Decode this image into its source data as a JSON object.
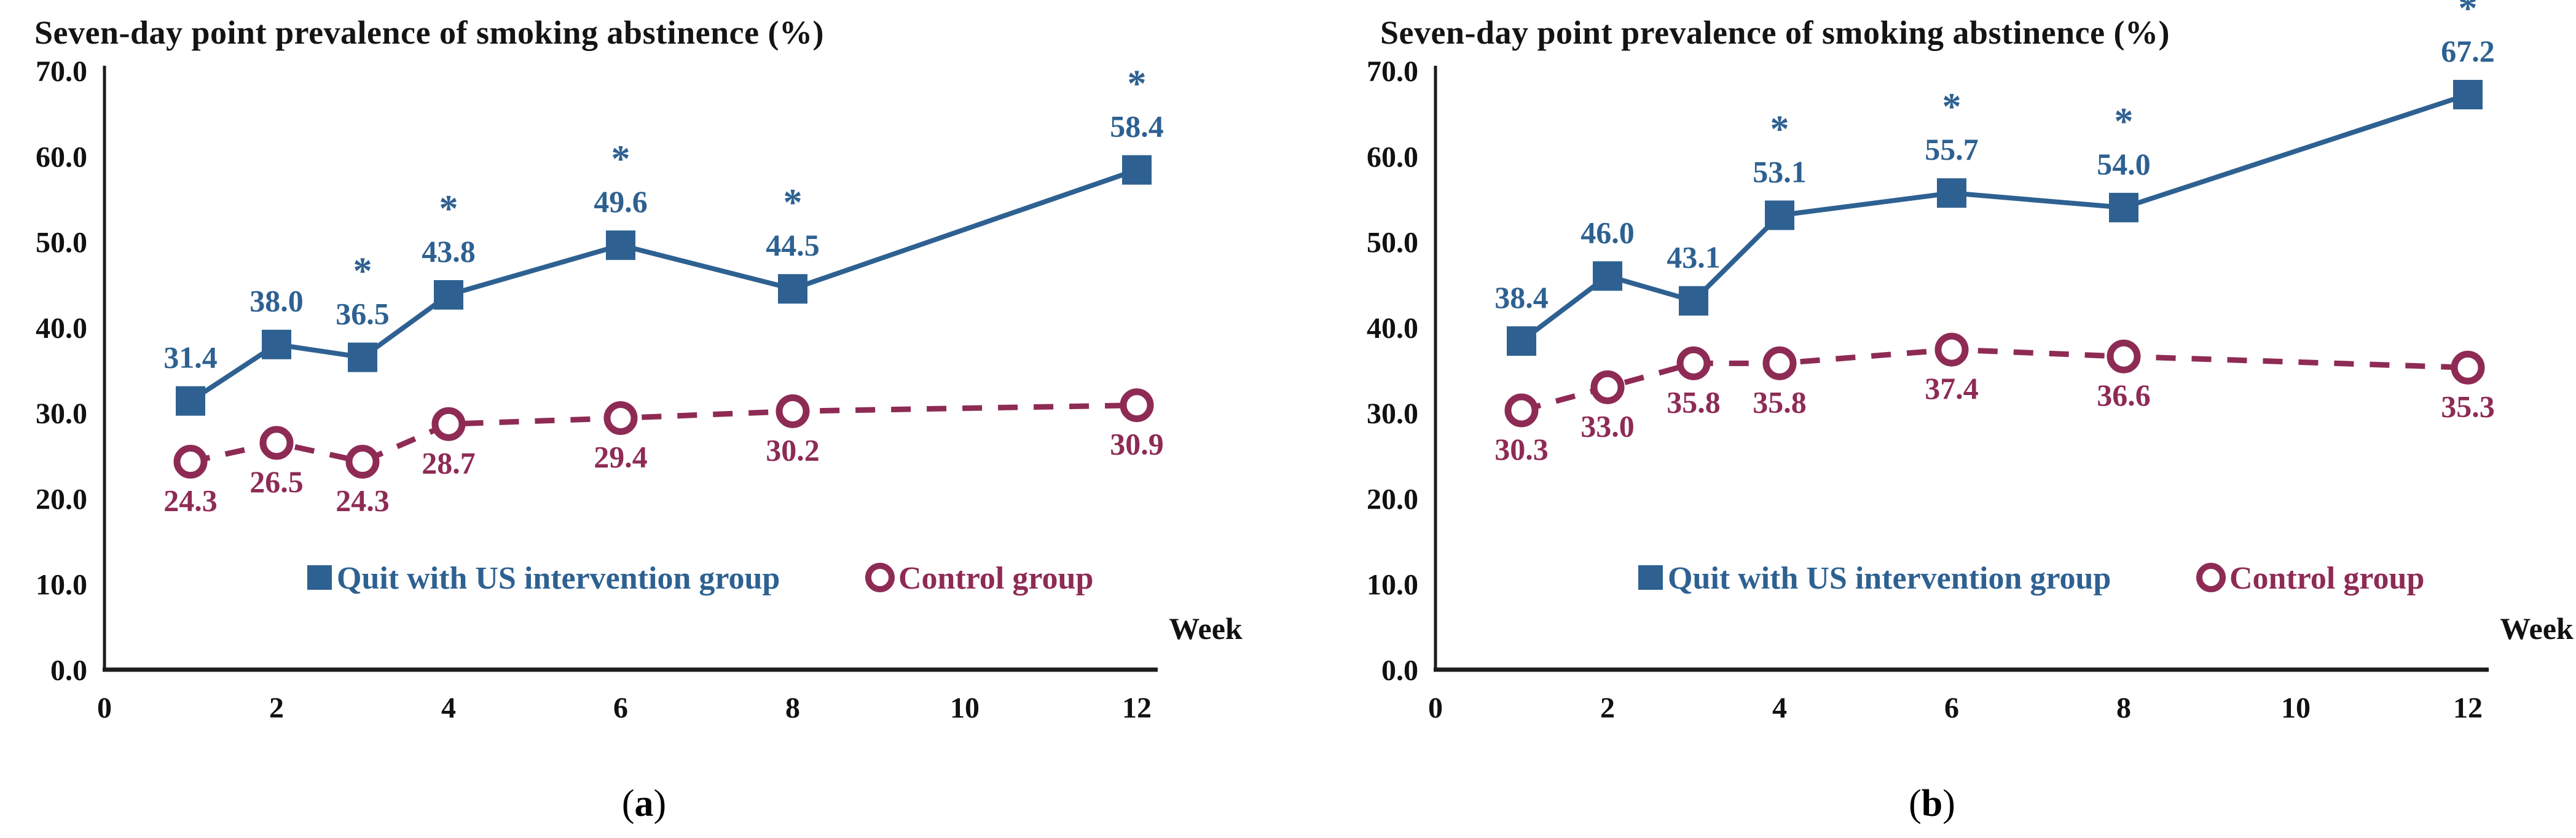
{
  "chart_data": [
    {
      "type": "line",
      "panel": "a",
      "title": "Seven-day point prevalence of smoking abstinence (%)",
      "xlabel": "Week",
      "ylabel": "",
      "caption": {
        "open": "(",
        "letter": "a",
        "close": ")"
      },
      "x": [
        1,
        2,
        3,
        4,
        6,
        8,
        12
      ],
      "x_ticks": [
        0,
        2,
        4,
        6,
        8,
        10,
        12
      ],
      "y_ticks": [
        "0.0",
        "10.0",
        "20.0",
        "30.0",
        "40.0",
        "50.0",
        "60.0",
        "70.0"
      ],
      "ylim": [
        0,
        70
      ],
      "xlim": [
        0,
        12.25
      ],
      "grid": false,
      "legend_position": "inside-bottom",
      "sig_symbol": "*",
      "axis_color": "#1c1c1c",
      "tick_label_color": "#111111",
      "series": [
        {
          "name": "Quit with US intervention group",
          "color": "#2e6191",
          "marker": "filled-square",
          "line_style": "solid",
          "values": [
            31.4,
            38.0,
            36.5,
            43.8,
            49.6,
            44.5,
            58.4
          ],
          "significant": [
            false,
            false,
            true,
            true,
            true,
            true,
            true
          ]
        },
        {
          "name": "Control group",
          "color": "#8e2b55",
          "marker": "open-circle",
          "line_style": "dashed",
          "values": [
            24.3,
            26.5,
            24.3,
            28.7,
            29.4,
            30.2,
            30.9
          ],
          "significant": [
            false,
            false,
            false,
            false,
            false,
            false,
            false
          ]
        }
      ]
    },
    {
      "type": "line",
      "panel": "b",
      "title": "Seven-day point prevalence of smoking abstinence (%)",
      "xlabel": "Week",
      "ylabel": "",
      "caption": {
        "open": "(",
        "letter": "b",
        "close": ")"
      },
      "x": [
        1,
        2,
        3,
        4,
        6,
        8,
        12
      ],
      "x_ticks": [
        0,
        2,
        4,
        6,
        8,
        10,
        12
      ],
      "y_ticks": [
        "0.0",
        "10.0",
        "20.0",
        "30.0",
        "40.0",
        "50.0",
        "60.0",
        "70.0"
      ],
      "ylim": [
        0,
        70
      ],
      "xlim": [
        0,
        12.25
      ],
      "grid": false,
      "legend_position": "inside-bottom",
      "sig_symbol": "*",
      "axis_color": "#1c1c1c",
      "tick_label_color": "#111111",
      "series": [
        {
          "name": "Quit with US intervention group",
          "color": "#2e6191",
          "marker": "filled-square",
          "line_style": "solid",
          "values": [
            38.4,
            46.0,
            43.1,
            53.1,
            55.7,
            54.0,
            67.2
          ],
          "significant": [
            false,
            false,
            false,
            true,
            true,
            true,
            true
          ]
        },
        {
          "name": "Control group",
          "color": "#8e2b55",
          "marker": "open-circle",
          "line_style": "dashed",
          "values": [
            30.3,
            33.0,
            35.8,
            35.8,
            37.4,
            36.6,
            35.3
          ],
          "significant": [
            false,
            false,
            false,
            false,
            false,
            false,
            false
          ]
        }
      ]
    }
  ]
}
